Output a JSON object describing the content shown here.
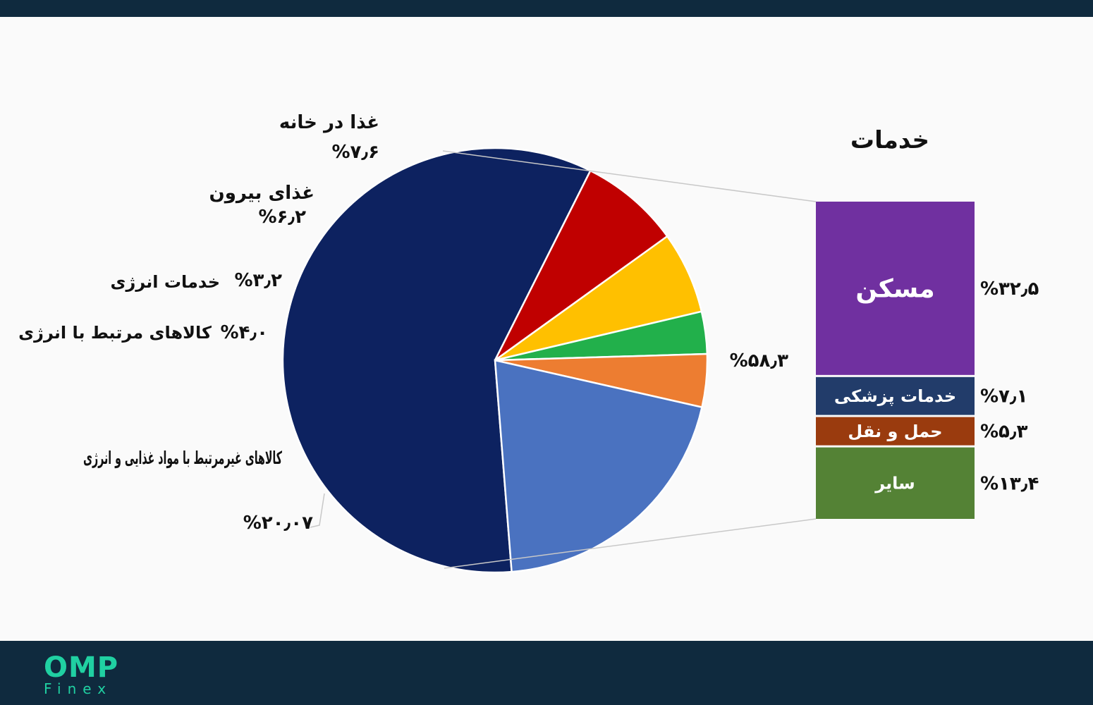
{
  "chart_data": {
    "type": "pie",
    "slices": [
      {
        "label": "",
        "value_label": "%۵۸٫۳",
        "value": 58.3,
        "color": "#0d2260"
      },
      {
        "label": "غذا در خانه",
        "value_label": "%۷٫۶",
        "value": 7.6,
        "color": "#c00000"
      },
      {
        "label": "غذای بیرون",
        "value_label": "%۶٫۲",
        "value": 6.2,
        "color": "#ffc000"
      },
      {
        "label": "خدمات انرژی",
        "value_label": "%۳٫۲",
        "value": 3.2,
        "color": "#22b04b"
      },
      {
        "label": "کالاهای مرتبط با انرژی",
        "value_label": "%۴٫۰",
        "value": 4.0,
        "color": "#ed7d31"
      },
      {
        "label": "کالاهای غیرمرتبط با مواد غذایی و انرژی",
        "value_label": "%۲۰٫۰۷",
        "value": 20.07,
        "color": "#4a72c0"
      }
    ],
    "breakdown": {
      "title": "خدمات",
      "items": [
        {
          "label": "مسکن",
          "value_label": "%۳۲٫۵",
          "value": 32.5,
          "color": "#7030a0"
        },
        {
          "label": "خدمات پزشکی",
          "value_label": "%۷٫۱",
          "value": 7.1,
          "color": "#223c6a"
        },
        {
          "label": "حمل و نقل",
          "value_label": "%۵٫۳",
          "value": 5.3,
          "color": "#9a3b0e"
        },
        {
          "label": "سایر",
          "value_label": "%۱۳٫۴",
          "value": 13.4,
          "color": "#548235"
        }
      ]
    }
  },
  "logo": {
    "main": "OMP",
    "sub": "Finex"
  }
}
